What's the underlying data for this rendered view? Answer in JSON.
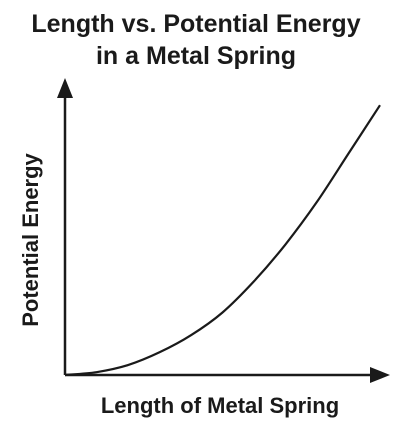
{
  "chart_data": {
    "type": "line",
    "title_line1": "Length vs. Potential Energy",
    "title_line2": "in a Metal Spring",
    "xlabel": "Length of Metal Spring",
    "ylabel": "Potential Energy",
    "x_ticks": [],
    "y_ticks": [],
    "grid": false,
    "legend": "none",
    "xlim": [
      0,
      10
    ],
    "ylim": [
      0,
      10
    ],
    "series": [
      {
        "x": [
          0,
          1,
          2,
          3,
          4,
          5,
          6,
          7,
          8,
          9,
          10
        ],
        "values": [
          0,
          0.1,
          0.35,
          0.8,
          1.4,
          2.2,
          3.3,
          4.6,
          6.1,
          7.8,
          9.5
        ]
      }
    ],
    "colors": {
      "curve": "#1a1a1a",
      "axes": "#1a1a1a"
    }
  }
}
